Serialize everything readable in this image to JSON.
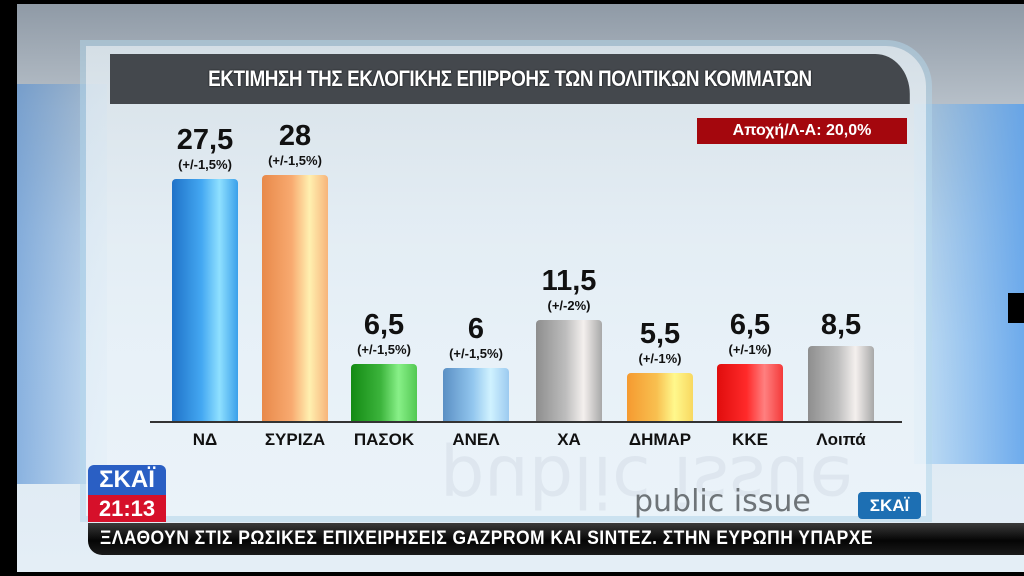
{
  "title": "ΕΚΤΙΜΗΣΗ ΤΗΣ ΕΚΛΟΓΙΚΗΣ ΕΠΙΡΡΟΗΣ ΤΩΝ ΠΟΛΙΤΙΚΩΝ ΚΟΜΜΑΤΩΝ",
  "abstention_badge": "Αποχή/Λ-Α: 20,0%",
  "chart_data": {
    "type": "bar",
    "title": "ΕΚΤΙΜΗΣΗ ΤΗΣ ΕΚΛΟΓΙΚΗΣ ΕΠΙΡΡΟΗΣ ΤΩΝ ΠΟΛΙΤΙΚΩΝ ΚΟΜΜΑΤΩΝ",
    "categories": [
      "ΝΔ",
      "ΣΥΡΙΖΑ",
      "ΠΑΣΟΚ",
      "ΑΝΕΛ",
      "ΧΑ",
      "ΔΗΜΑΡ",
      "ΚΚΕ",
      "Λοιπά"
    ],
    "values": [
      27.5,
      28,
      6.5,
      6,
      11.5,
      5.5,
      6.5,
      8.5
    ],
    "value_labels": [
      "27,5",
      "28",
      "6,5",
      "6",
      "11,5",
      "5,5",
      "6,5",
      "8,5"
    ],
    "margins_of_error": [
      "(+/-1,5%)",
      "(+/-1,5%)",
      "(+/-1,5%)",
      "(+/-1,5%)",
      "(+/-2%)",
      "(+/-1%)",
      "(+/-1%)",
      ""
    ],
    "colors": [
      "#2f95e8",
      "#f5a263",
      "#3cb43c",
      "#8cc4f0",
      "#b8b8b8",
      "#f8c050",
      "#f52525",
      "#b8b8b8"
    ],
    "annotations": [
      "Αποχή/Λ-Α: 20,0%"
    ],
    "xlabel": "",
    "ylabel": "",
    "ylim": [
      0,
      30
    ],
    "grid": false,
    "legend": "none"
  },
  "source": {
    "pollster": "public issue",
    "channel_badge": "ΣΚΑΪ"
  },
  "broadcast": {
    "channel_logo": "ΣΚΑΪ",
    "clock": "21:13",
    "ticker": "ΞΛΑΘΟΥΝ ΣΤΙΣ  ΡΩΣΙΚΕΣ  ΕΠΙΧΕΙΡΗΣΕΙΣ  GAZPROM ΚΑΙ SINTEZ.   ΣΤΗΝ ΕΥΡΩΠΗ ΥΠΑΡΧΕ"
  }
}
